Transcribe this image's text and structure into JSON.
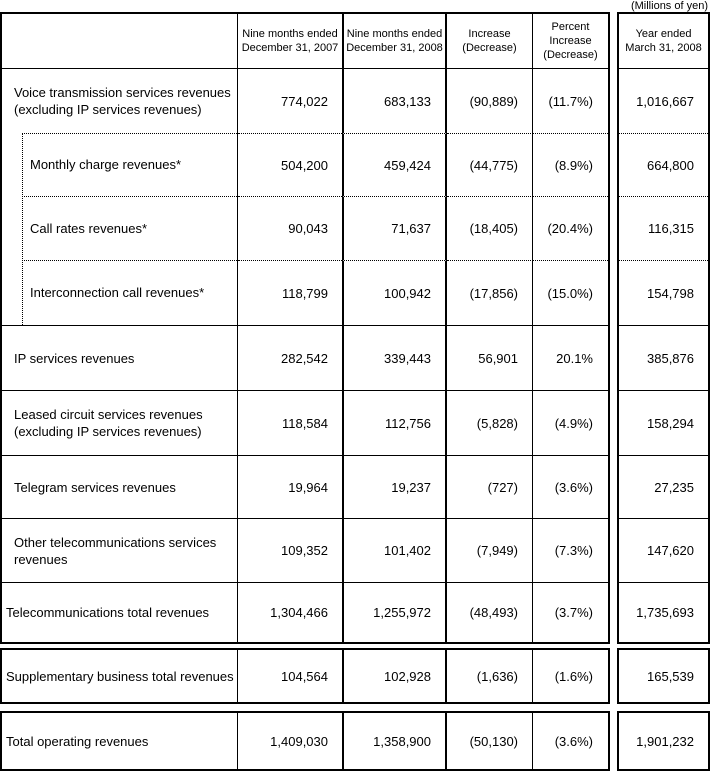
{
  "note": "(Millions of yen)",
  "colors": {
    "text": "#000000",
    "border": "#000000",
    "background": "#ffffff"
  },
  "header": {
    "period2007": [
      "Nine months ended",
      "December 31, 2007"
    ],
    "period2008": [
      "Nine months ended",
      "December 31, 2008"
    ],
    "increase": [
      "Increase",
      "(Decrease)"
    ],
    "percent": [
      "Percent",
      "Increase",
      "(Decrease)"
    ],
    "year": [
      "Year ended",
      "March 31, 2008"
    ]
  },
  "rows": [
    {
      "label": "Voice transmission services revenues (excluding IP services revenues)",
      "indent": false,
      "values": [
        "774,022",
        "683,133",
        "(90,889)",
        "(11.7%)",
        "1,016,667"
      ]
    },
    {
      "label": "Monthly charge revenues*",
      "indent": true,
      "values": [
        "504,200",
        "459,424",
        "(44,775)",
        "(8.9%)",
        "664,800"
      ]
    },
    {
      "label": "Call rates revenues*",
      "indent": true,
      "values": [
        "90,043",
        "71,637",
        "(18,405)",
        "(20.4%)",
        "116,315"
      ]
    },
    {
      "label": "Interconnection call revenues*",
      "indent": true,
      "values": [
        "118,799",
        "100,942",
        "(17,856)",
        "(15.0%)",
        "154,798"
      ]
    },
    {
      "label": "IP services revenues",
      "indent": false,
      "values": [
        "282,542",
        "339,443",
        "56,901",
        "20.1%",
        "385,876"
      ]
    },
    {
      "label": "Leased circuit services revenues (excluding IP services revenues)",
      "indent": false,
      "values": [
        "118,584",
        "112,756",
        "(5,828)",
        "(4.9%)",
        "158,294"
      ]
    },
    {
      "label": "Telegram services revenues",
      "indent": false,
      "values": [
        "19,964",
        "19,237",
        "(727)",
        "(3.6%)",
        "27,235"
      ]
    },
    {
      "label": "Other telecommunications services revenues",
      "indent": false,
      "values": [
        "109,352",
        "101,402",
        "(7,949)",
        "(7.3%)",
        "147,620"
      ]
    },
    {
      "label": "Telecommunications total revenues",
      "indent": false,
      "values": [
        "1,304,466",
        "1,255,972",
        "(48,493)",
        "(3.7%)",
        "1,735,693"
      ]
    },
    {
      "label": "Supplementary business total revenues",
      "indent": false,
      "values": [
        "104,564",
        "102,928",
        "(1,636)",
        "(1.6%)",
        "165,539"
      ]
    },
    {
      "label": "Total operating revenues",
      "indent": false,
      "values": [
        "1,409,030",
        "1,358,900",
        "(50,130)",
        "(3.6%)",
        "1,901,232"
      ]
    }
  ]
}
